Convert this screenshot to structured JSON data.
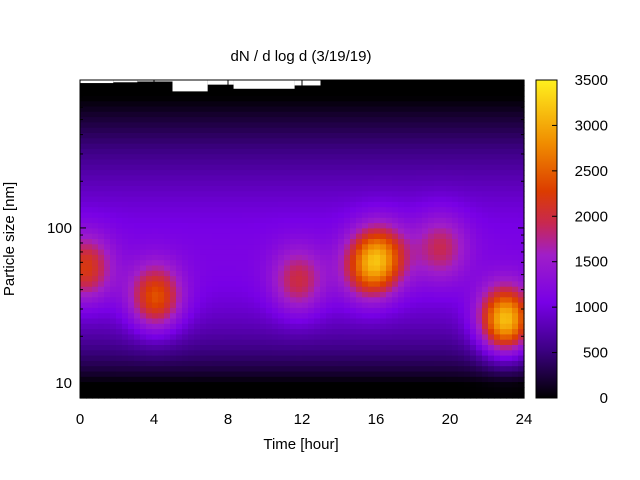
{
  "chart_data": {
    "type": "heatmap",
    "title": "dN / d log d (3/19/19)",
    "xlabel": "Time [hour]",
    "ylabel": "Particle size [nm]",
    "xlim": [
      0,
      24
    ],
    "ylim": [
      8,
      900
    ],
    "yscale": "log",
    "x_ticks": [
      0,
      4,
      8,
      12,
      16,
      20,
      24
    ],
    "y_ticks": [
      10,
      100
    ],
    "colorbar": {
      "range": [
        0,
        3500
      ],
      "ticks": [
        0,
        500,
        1000,
        1500,
        2000,
        2500,
        3000,
        3500
      ],
      "colormap": "black-purple-red-orange-yellow"
    },
    "grid": false,
    "hotspots": [
      {
        "time_hour": 0.3,
        "size_nm": 55,
        "value": 2000
      },
      {
        "time_hour": 4.1,
        "size_nm": 35,
        "value": 2300
      },
      {
        "time_hour": 11.8,
        "size_nm": 45,
        "value": 1800
      },
      {
        "time_hour": 15.5,
        "size_nm": 55,
        "value": 1900
      },
      {
        "time_hour": 16.3,
        "size_nm": 65,
        "value": 2200
      },
      {
        "time_hour": 19.5,
        "size_nm": 75,
        "value": 1700
      },
      {
        "time_hour": 23.0,
        "size_nm": 25,
        "value": 3200
      }
    ],
    "background": {
      "mid_size_value": 1100,
      "low_size_value": 0,
      "high_size_value": 0
    },
    "missing_data_color": "#ffffff"
  }
}
